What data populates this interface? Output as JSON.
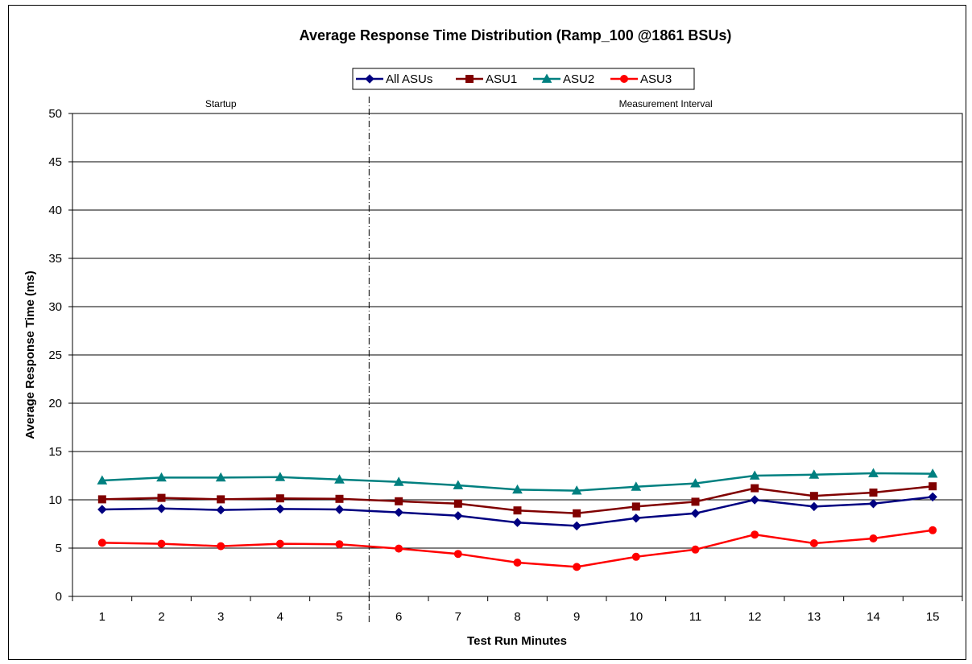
{
  "chart_data": {
    "type": "line",
    "title": "Average Response Time Distribution (Ramp_100 @1861 BSUs)",
    "xlabel": "Test Run Minutes",
    "ylabel": "Average Response Time (ms)",
    "ylim": [
      0,
      50
    ],
    "yticks": [
      "0",
      "5",
      "10",
      "15",
      "20",
      "25",
      "30",
      "35",
      "40",
      "45",
      "50"
    ],
    "categories": [
      "1",
      "2",
      "3",
      "4",
      "5",
      "6",
      "7",
      "8",
      "9",
      "10",
      "11",
      "12",
      "13",
      "14",
      "15"
    ],
    "grid": "horizontal",
    "legend_position": "top",
    "regions": [
      {
        "label": "Startup"
      },
      {
        "label": "Measurement Interval"
      }
    ],
    "series": [
      {
        "name": "All ASUs",
        "color": "#000080",
        "marker": "diamond",
        "values": [
          9.0,
          9.1,
          8.95,
          9.05,
          9.0,
          8.7,
          8.35,
          7.65,
          7.3,
          8.1,
          8.6,
          10.0,
          9.3,
          9.6,
          10.3
        ]
      },
      {
        "name": "ASU1",
        "color": "#800000",
        "marker": "square",
        "values": [
          10.05,
          10.2,
          10.05,
          10.15,
          10.1,
          9.85,
          9.6,
          8.9,
          8.6,
          9.3,
          9.8,
          11.2,
          10.4,
          10.75,
          11.4
        ]
      },
      {
        "name": "ASU2",
        "color": "#008080",
        "marker": "triangle",
        "values": [
          12.0,
          12.3,
          12.3,
          12.35,
          12.1,
          11.85,
          11.5,
          11.05,
          10.95,
          11.35,
          11.7,
          12.5,
          12.6,
          12.75,
          12.7
        ]
      },
      {
        "name": "ASU3",
        "color": "#ff0000",
        "marker": "circle",
        "values": [
          5.55,
          5.45,
          5.2,
          5.45,
          5.4,
          4.95,
          4.4,
          3.5,
          3.05,
          4.1,
          4.85,
          6.4,
          5.5,
          6.0,
          6.85
        ]
      }
    ]
  }
}
